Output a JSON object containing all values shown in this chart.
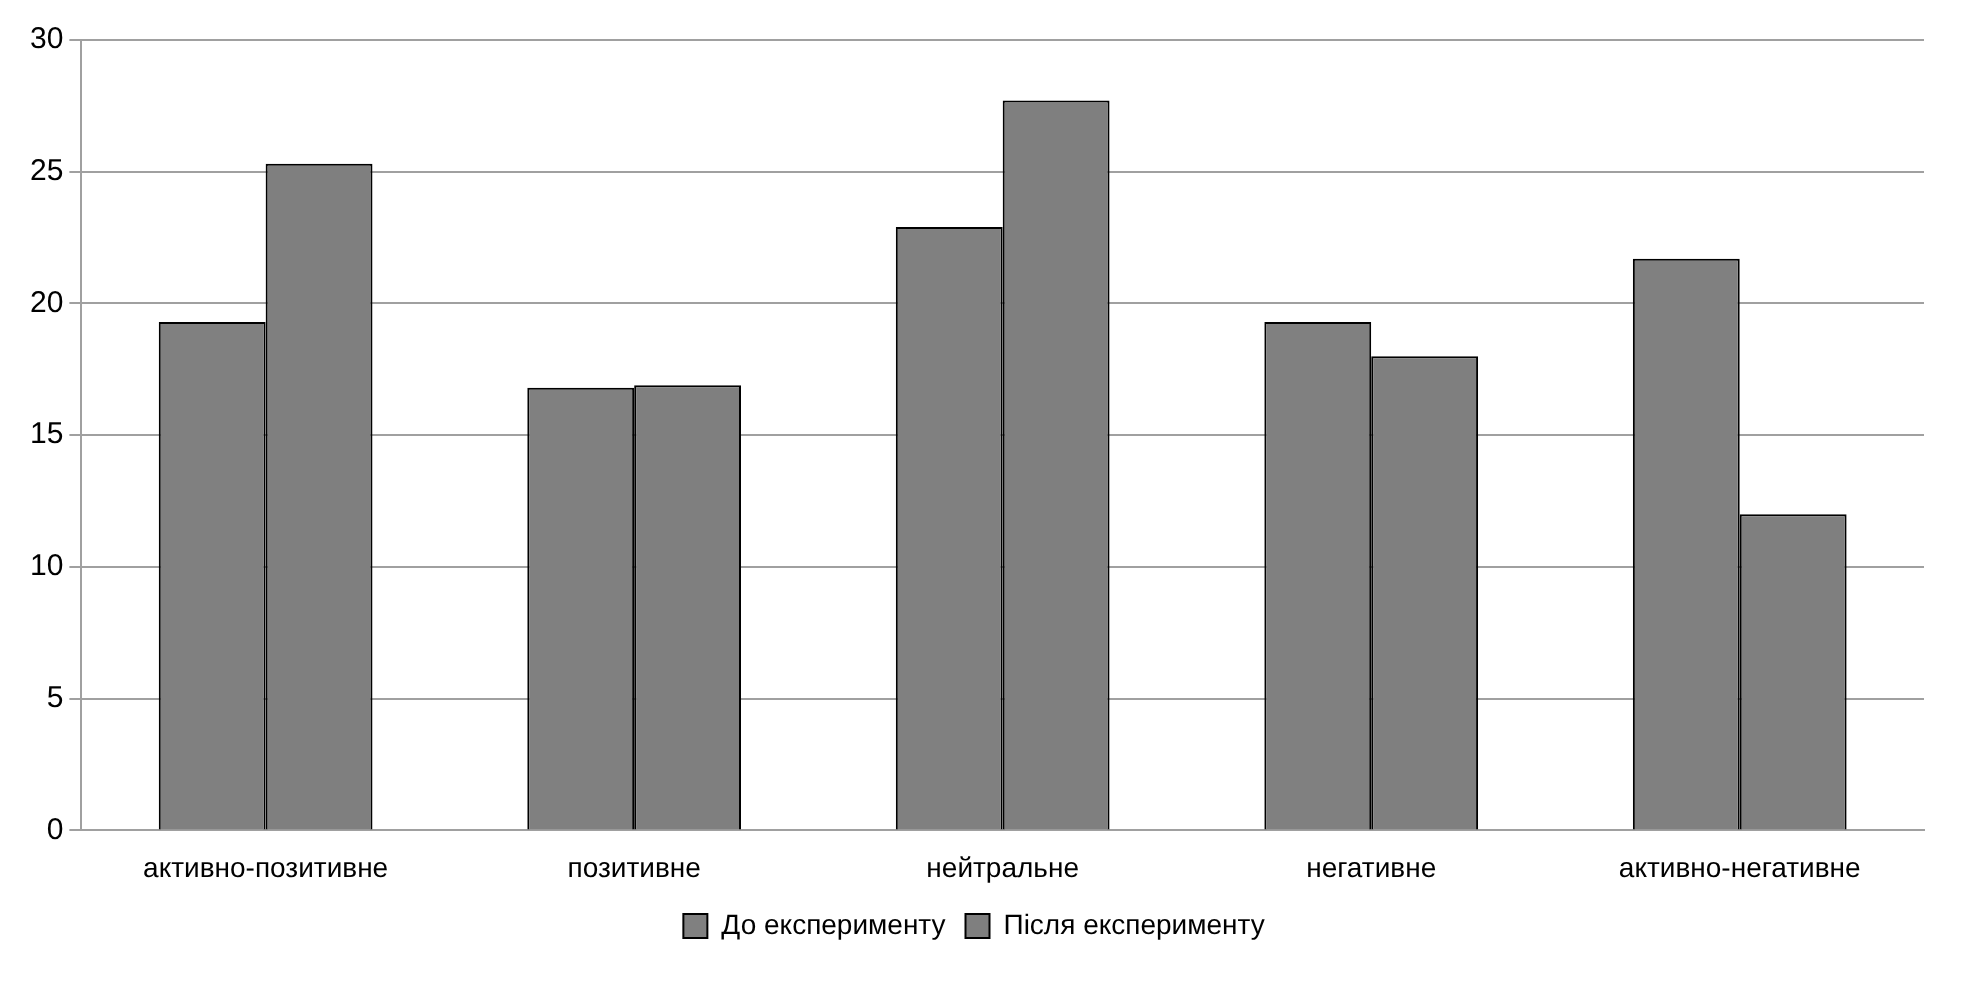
{
  "chart_data": {
    "type": "bar",
    "categories": [
      "активно-позитивне",
      "позитивне",
      "нейтральне",
      "негативне",
      "активно-негативне"
    ],
    "series": [
      {
        "name": "До експерименту",
        "color": "#808080",
        "values": [
          19.3,
          16.8,
          22.9,
          19.3,
          21.7
        ]
      },
      {
        "name": "Після експерименту",
        "color": "#7f7f7f",
        "values": [
          25.3,
          16.9,
          27.7,
          18.0,
          12.0
        ]
      }
    ],
    "ylim": [
      0,
      30
    ],
    "yticks": [
      0,
      5,
      10,
      15,
      20,
      25,
      30
    ],
    "grid": "y",
    "legend": "bottom"
  }
}
